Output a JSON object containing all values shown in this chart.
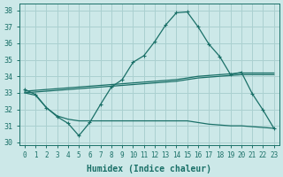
{
  "background_color": "#cce8e8",
  "grid_color": "#aad0d0",
  "line_color": "#1a7068",
  "xlabel": "Humidex (Indice chaleur)",
  "xlim": [
    -0.5,
    23.5
  ],
  "ylim": [
    29.85,
    38.4
  ],
  "yticks": [
    30,
    31,
    32,
    33,
    34,
    35,
    36,
    37,
    38
  ],
  "xticks": [
    0,
    1,
    2,
    3,
    4,
    5,
    6,
    7,
    8,
    9,
    10,
    11,
    12,
    13,
    14,
    15,
    16,
    17,
    18,
    19,
    20,
    21,
    22,
    23
  ],
  "line1_x": [
    0,
    1,
    2,
    3,
    4,
    5,
    6,
    7,
    8,
    9,
    10,
    11,
    12,
    13,
    14,
    15,
    16,
    17,
    18,
    19,
    20,
    21,
    22,
    23
  ],
  "line1_y": [
    33.2,
    32.9,
    32.1,
    31.55,
    31.15,
    30.4,
    31.2,
    32.3,
    33.35,
    33.8,
    34.85,
    35.25,
    36.1,
    37.1,
    37.85,
    37.9,
    37.0,
    35.95,
    35.2,
    34.1,
    34.25,
    32.95,
    31.95,
    30.85
  ],
  "line2_x": [
    0,
    1,
    2,
    3,
    4,
    5,
    6,
    7,
    8,
    9,
    10,
    11,
    12,
    13,
    14,
    15,
    16,
    17,
    18,
    19,
    20,
    21,
    22,
    23
  ],
  "line2_y": [
    33.1,
    33.15,
    33.2,
    33.25,
    33.3,
    33.35,
    33.4,
    33.45,
    33.5,
    33.55,
    33.6,
    33.65,
    33.7,
    33.75,
    33.8,
    33.9,
    34.0,
    34.05,
    34.1,
    34.15,
    34.2,
    34.2,
    34.2,
    34.2
  ],
  "line3_x": [
    0,
    1,
    2,
    3,
    4,
    5,
    6,
    7,
    8,
    9,
    10,
    11,
    12,
    13,
    14,
    15,
    16,
    17,
    18,
    19,
    20,
    21,
    22,
    23
  ],
  "line3_y": [
    33.0,
    33.05,
    33.1,
    33.15,
    33.2,
    33.25,
    33.3,
    33.35,
    33.4,
    33.45,
    33.5,
    33.55,
    33.6,
    33.65,
    33.7,
    33.8,
    33.9,
    33.95,
    34.0,
    34.05,
    34.1,
    34.1,
    34.1,
    34.1
  ],
  "line4_x": [
    0,
    1,
    2,
    3,
    4,
    5,
    6,
    7,
    8,
    9,
    10,
    11,
    12,
    13,
    14,
    15,
    16,
    17,
    18,
    19,
    20,
    21,
    22,
    23
  ],
  "line4_y": [
    33.0,
    32.85,
    32.1,
    31.6,
    31.4,
    31.3,
    31.3,
    31.3,
    31.3,
    31.3,
    31.3,
    31.3,
    31.3,
    31.3,
    31.3,
    31.3,
    31.2,
    31.1,
    31.05,
    31.0,
    31.0,
    30.95,
    30.9,
    30.85
  ]
}
